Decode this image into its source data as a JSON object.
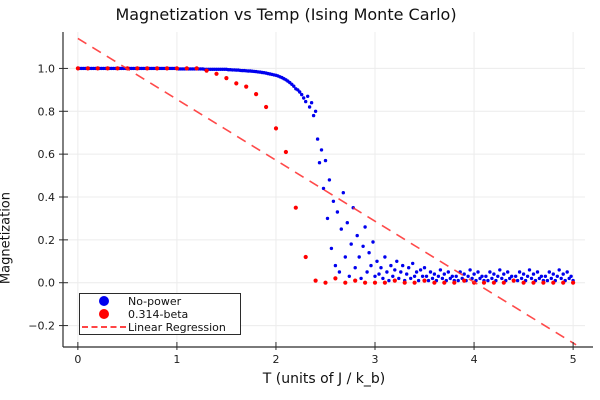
{
  "title": "Magnetization vs Temp (Ising Monte Carlo)",
  "axes": {
    "xlabel": "T (units of J / k_b)",
    "ylabel": "Magnetization",
    "xtick_labels": [
      "0",
      "1",
      "2",
      "3",
      "4",
      "5"
    ],
    "xtick_values": [
      0,
      1,
      2,
      3,
      4,
      5
    ],
    "ytick_labels": [
      "−0.2",
      "0.0",
      "0.2",
      "0.4",
      "0.6",
      "0.8",
      "1.0"
    ],
    "ytick_values": [
      -0.2,
      0.0,
      0.2,
      0.4,
      0.6,
      0.8,
      1.0
    ]
  },
  "legend": {
    "items": [
      {
        "label": "No-power",
        "marker": "circle",
        "color": "#0000ee"
      },
      {
        "label": "0.314-beta",
        "marker": "circle",
        "color": "#ff0000"
      },
      {
        "label": "Linear Regression",
        "marker": "dashed-line",
        "color": "#ff4545"
      }
    ]
  },
  "colors": {
    "series_blue": "#0000ee",
    "series_red": "#ff0000",
    "regression_line": "#ff2b2b",
    "grid": "#ececec",
    "spine": "#2b2b2b",
    "tick_text": "#1c1c1c",
    "background": "#ffffff"
  },
  "chart_data": {
    "type": "scatter",
    "title": "Magnetization vs Temp (Ising Monte Carlo)",
    "xlabel": "T (units of J / k_b)",
    "ylabel": "Magnetization",
    "xlim": [
      -0.15,
      5.12
    ],
    "ylim": [
      -0.3,
      1.17
    ],
    "grid": true,
    "legend_position": "bottom-left",
    "series": [
      {
        "name": "No-power",
        "type": "scatter",
        "color": "#0000ee",
        "marker_radius": 1.7,
        "t_start": 0.0,
        "t_step": 0.02,
        "m": [
          1,
          1,
          1,
          1,
          1,
          1,
          1,
          1,
          1,
          1,
          1,
          1,
          1,
          1,
          1,
          1,
          1,
          1,
          1,
          1,
          1,
          1,
          1,
          1,
          1,
          1,
          1,
          1,
          1,
          1,
          1,
          1,
          1,
          1,
          1,
          1,
          1,
          1,
          1,
          1,
          1,
          1,
          1,
          1,
          1,
          1,
          1,
          1,
          1,
          1,
          1,
          0.998,
          0.998,
          0.998,
          0.998,
          0.998,
          0.998,
          0.998,
          0.998,
          0.998,
          0.998,
          0.998,
          0.998,
          0.998,
          0.996,
          0.996,
          0.996,
          0.996,
          0.996,
          0.996,
          0.996,
          0.996,
          0.996,
          0.996,
          0.996,
          0.996,
          0.994,
          0.994,
          0.993,
          0.993,
          0.992,
          0.992,
          0.991,
          0.99,
          0.99,
          0.989,
          0.988,
          0.988,
          0.987,
          0.986,
          0.985,
          0.984,
          0.983,
          0.981,
          0.98,
          0.978,
          0.976,
          0.974,
          0.972,
          0.97,
          0.968,
          0.965,
          0.961,
          0.957,
          0.952,
          0.947,
          0.941,
          0.934,
          0.926,
          0.917,
          0.905,
          0.9,
          0.89,
          0.878,
          0.862,
          0.845,
          0.87,
          0.82,
          0.84,
          0.78,
          0.8,
          0.67,
          0.56,
          0.62,
          0.44,
          0.57,
          0.3,
          0.48,
          0.16,
          0.38,
          0.08,
          0.33,
          0.05,
          0.25,
          0.42,
          0.12,
          0.28,
          0.03,
          0.18,
          0.35,
          0.07,
          0.22,
          0.12,
          0.02,
          0.17,
          0.26,
          0.05,
          0.14,
          0.08,
          0.19,
          0.03,
          0.1,
          0.04,
          0.07,
          0.02,
          0.12,
          0.05,
          0.01,
          0.08,
          0.03,
          0.06,
          0.1,
          0.02,
          0.05,
          0.08,
          0.01,
          0.04,
          0.07,
          0.02,
          0.09,
          0.03,
          0.05,
          0.01,
          0.06,
          0.03,
          0.07,
          0.03,
          0.01,
          0.05,
          0.02,
          0.04,
          0.01,
          0.03,
          0.06,
          0.02,
          0.04,
          0.01,
          0.05,
          0.02,
          0.03,
          0.01,
          0.03,
          0.01,
          0.05,
          0.02,
          0.04,
          0.01,
          0.03,
          0.06,
          0.02,
          0.04,
          0.01,
          0.05,
          0.02,
          0.03,
          0.01,
          0.03,
          0.01,
          0.05,
          0.02,
          0.04,
          0.01,
          0.03,
          0.06,
          0.02,
          0.04,
          0.01,
          0.05,
          0.02,
          0.03,
          0.01,
          0.03,
          0.01,
          0.05,
          0.02,
          0.04,
          0.01,
          0.03,
          0.06,
          0.02,
          0.04,
          0.01,
          0.05,
          0.02,
          0.03,
          0.01,
          0.03,
          0.01,
          0.05,
          0.02,
          0.04,
          0.01,
          0.03,
          0.06,
          0.02,
          0.04,
          0.01,
          0.05,
          0.02,
          0.03,
          0.01
        ]
      },
      {
        "name": "0.314-beta",
        "type": "scatter",
        "color": "#ff0000",
        "marker_radius": 2.1,
        "t_start": 0.0,
        "t_step": 0.1,
        "m": [
          1,
          1,
          1,
          1,
          1,
          1,
          1,
          1,
          1,
          1,
          1,
          1,
          1,
          0.99,
          0.975,
          0.955,
          0.93,
          0.915,
          0.88,
          0.82,
          0.72,
          0.61,
          0.35,
          0.12,
          0.01,
          0,
          0.02,
          0,
          0.01,
          0,
          0,
          0,
          0.01,
          0,
          0,
          0.01,
          0,
          0,
          0,
          0.01,
          0,
          0,
          0,
          0,
          0.01,
          0,
          0,
          0,
          0,
          0,
          0
        ]
      },
      {
        "name": "Linear Regression",
        "type": "line",
        "style": "dashed",
        "color": "#ff2b2b",
        "x": [
          0.0,
          5.03
        ],
        "y": [
          1.14,
          -0.29
        ]
      }
    ]
  }
}
